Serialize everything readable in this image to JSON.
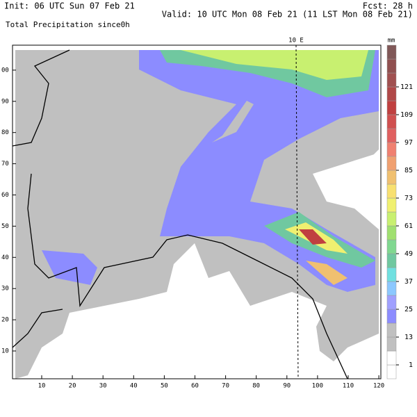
{
  "header": {
    "init": "Init: 06 UTC Sun 07 Feb 21",
    "forecast": "Fcst:   28 h",
    "valid": "Valid: 10 UTC Mon 08 Feb 21 (11 LST Mon 08 Feb 21)",
    "field": "Total Precipitation since0h"
  },
  "map": {
    "meridian_label": "10 E",
    "x_ticks": [
      "10",
      "20",
      "30",
      "40",
      "50",
      "60",
      "70",
      "80",
      "90",
      "100",
      "110",
      "120"
    ],
    "y_ticks": [
      "10",
      "20",
      "30",
      "40",
      "50",
      "60",
      "70",
      "80",
      "90",
      "00"
    ]
  },
  "colorbar": {
    "unit": "mm",
    "labels": [
      "1",
      "13",
      "25",
      "37",
      "49",
      "61",
      "73",
      "85",
      "97",
      "109",
      "121"
    ]
  }
}
